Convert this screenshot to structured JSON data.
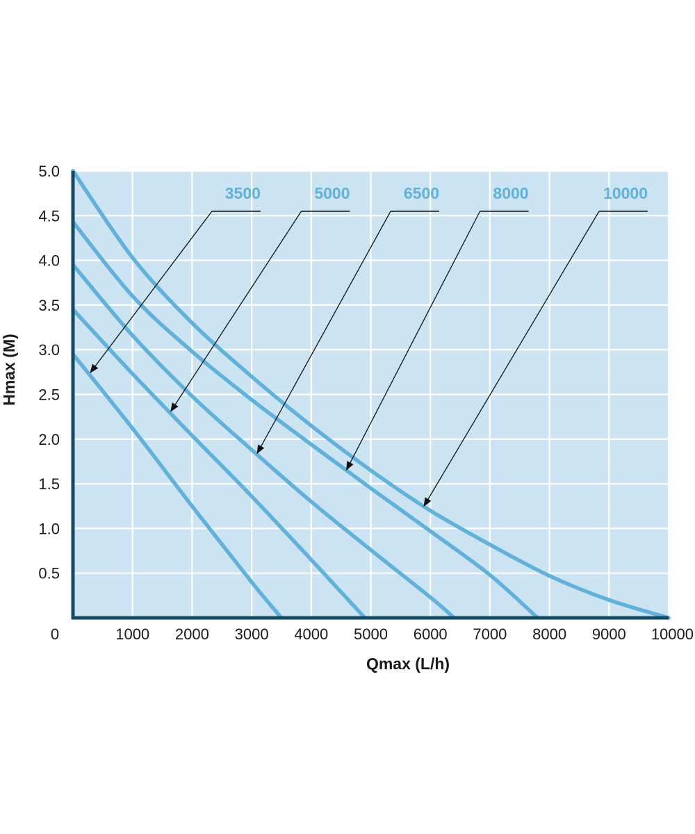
{
  "chart_data": {
    "type": "line",
    "title": "",
    "xlabel": "Qmax (L/h)",
    "ylabel": "Hmax (M)",
    "xlim": [
      0,
      10000
    ],
    "ylim": [
      0,
      5.0
    ],
    "x_ticks": [
      "0",
      "1000",
      "2000",
      "3000",
      "4000",
      "5000",
      "6000",
      "7000",
      "8000",
      "9000",
      "10000"
    ],
    "y_ticks": [
      "0.5",
      "1.0",
      "1.5",
      "2.0",
      "2.5",
      "3.0",
      "3.5",
      "4.0",
      "4.5",
      "5.0"
    ],
    "grid": true,
    "legend": "labels with arrows above plot",
    "colors": {
      "plot_bg": "#cce4f1",
      "grid": "#ffffff",
      "line": "#5fb2dc",
      "axis": "#134a63",
      "label": "#5fb2dc"
    },
    "series": [
      {
        "name": "3500",
        "x": [
          0,
          1000,
          2000,
          3000,
          3500
        ],
        "y": [
          2.95,
          2.12,
          1.25,
          0.4,
          0.0
        ],
        "label_x": 3500,
        "arrow_at": 200
      },
      {
        "name": "5000",
        "x": [
          0,
          1000,
          2000,
          3000,
          4000,
          4900
        ],
        "y": [
          3.45,
          2.73,
          2.04,
          1.36,
          0.65,
          0.0
        ],
        "label_x": 5000,
        "arrow_at": 1550
      },
      {
        "name": "6500",
        "x": [
          0,
          1000,
          2000,
          3000,
          4000,
          5000,
          6000,
          6400
        ],
        "y": [
          3.95,
          3.16,
          2.48,
          1.88,
          1.3,
          0.76,
          0.23,
          0.0
        ],
        "label_x": 6500,
        "arrow_at": 3000
      },
      {
        "name": "8000",
        "x": [
          0,
          1000,
          2000,
          3000,
          4000,
          5000,
          6000,
          7000,
          7800
        ],
        "y": [
          4.43,
          3.6,
          2.98,
          2.44,
          1.94,
          1.45,
          0.97,
          0.48,
          0.0
        ],
        "label_x": 8000,
        "arrow_at": 4500
      },
      {
        "name": "10000",
        "x": [
          0,
          1000,
          2000,
          3000,
          4000,
          5000,
          6000,
          7000,
          8000,
          9000,
          10000
        ],
        "y": [
          5.0,
          4.03,
          3.3,
          2.7,
          2.15,
          1.65,
          1.2,
          0.82,
          0.47,
          0.2,
          0.0
        ],
        "label_x": 10000,
        "arrow_at": 5800
      }
    ]
  }
}
